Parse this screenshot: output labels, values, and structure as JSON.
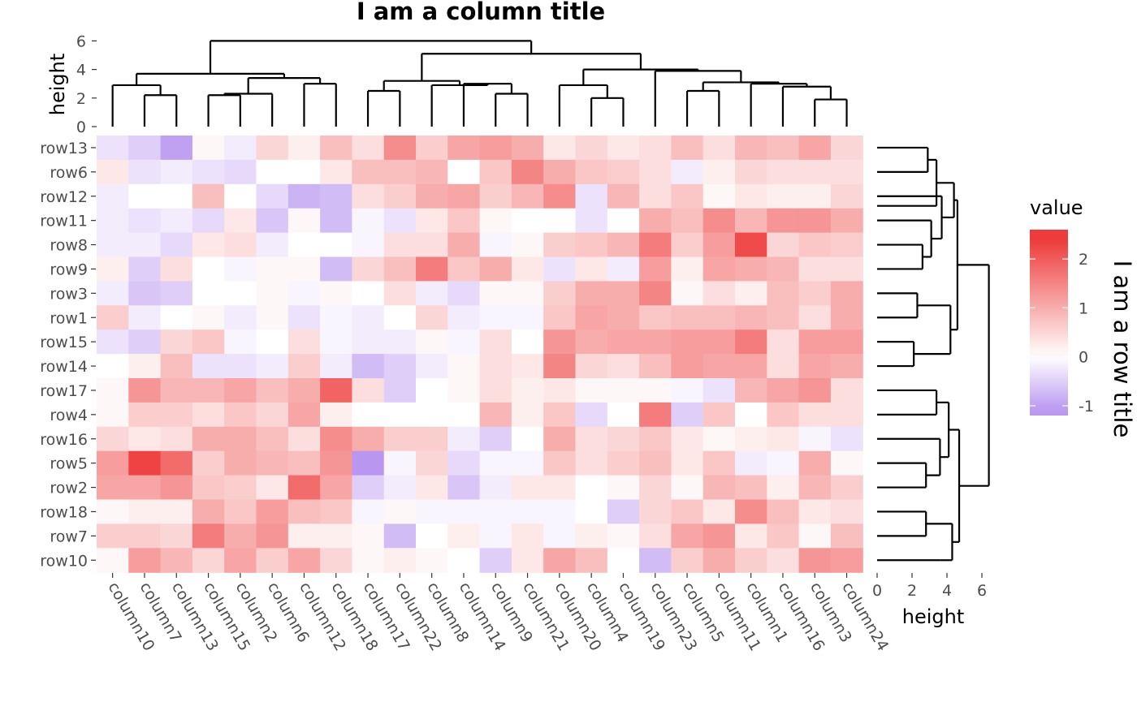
{
  "chart_data": {
    "type": "heatmap",
    "title": "I am a column title",
    "row_title": "I am a row title",
    "columns": [
      "column10",
      "column7",
      "column13",
      "column15",
      "column2",
      "column6",
      "column12",
      "column18",
      "column17",
      "column22",
      "column8",
      "column14",
      "column9",
      "column21",
      "column20",
      "column4",
      "column19",
      "column23",
      "column5",
      "column11",
      "column1",
      "column16",
      "column3",
      "column24"
    ],
    "rows": [
      "row13",
      "row6",
      "row12",
      "row11",
      "row8",
      "row9",
      "row3",
      "row1",
      "row15",
      "row14",
      "row17",
      "row4",
      "row16",
      "row5",
      "row2",
      "row18",
      "row7",
      "row10"
    ],
    "values": [
      [
        -0.3,
        -0.5,
        -1.0,
        0.1,
        -0.2,
        0.5,
        0.2,
        0.8,
        0.4,
        1.4,
        0.6,
        1.1,
        1.2,
        1.0,
        0.3,
        0.5,
        0.3,
        0.4,
        0.8,
        0.4,
        0.9,
        0.8,
        1.1,
        0.5
      ],
      [
        0.3,
        -0.3,
        -0.2,
        -0.3,
        -0.4,
        0.0,
        0.0,
        0.3,
        0.8,
        0.8,
        0.9,
        0.0,
        0.7,
        1.5,
        1.0,
        0.7,
        0.6,
        0.4,
        -0.2,
        0.2,
        0.5,
        0.4,
        0.4,
        0.4
      ],
      [
        -0.2,
        0.0,
        0.0,
        0.8,
        0.0,
        -0.4,
        -0.8,
        -0.7,
        0.4,
        0.6,
        1.0,
        1.1,
        0.6,
        0.9,
        1.4,
        -0.3,
        0.9,
        0.4,
        0.7,
        0.1,
        0.3,
        0.2,
        0.2,
        0.5
      ],
      [
        -0.2,
        -0.3,
        -0.2,
        -0.4,
        0.3,
        -0.6,
        0.1,
        -0.7,
        -0.1,
        -0.3,
        0.3,
        0.7,
        0.1,
        0.0,
        0.0,
        -0.3,
        0.0,
        1.0,
        0.8,
        1.4,
        0.9,
        1.3,
        1.3,
        1.0
      ],
      [
        -0.2,
        -0.2,
        -0.4,
        0.3,
        0.4,
        -0.2,
        0.0,
        0.0,
        -0.1,
        0.4,
        0.4,
        1.0,
        -0.1,
        0.1,
        0.6,
        0.7,
        0.9,
        1.6,
        0.6,
        1.2,
        2.2,
        0.5,
        0.7,
        0.6
      ],
      [
        0.2,
        -0.5,
        0.4,
        0.0,
        -0.1,
        0.1,
        0.1,
        -0.7,
        0.5,
        0.8,
        1.6,
        0.7,
        1.0,
        0.3,
        -0.3,
        0.3,
        -0.2,
        1.2,
        0.2,
        1.1,
        1.0,
        0.9,
        0.4,
        0.4
      ],
      [
        -0.2,
        -0.6,
        -0.5,
        0.0,
        0.0,
        0.1,
        -0.1,
        0.1,
        0.0,
        0.4,
        -0.2,
        -0.4,
        0.1,
        0.1,
        0.6,
        1.0,
        1.0,
        1.5,
        0.1,
        0.4,
        0.2,
        0.8,
        0.6,
        1.0
      ],
      [
        0.6,
        -0.2,
        0.0,
        0.1,
        -0.2,
        0.1,
        -0.3,
        -0.1,
        -0.2,
        0.0,
        0.5,
        -0.2,
        -0.1,
        -0.1,
        0.7,
        1.1,
        1.0,
        0.7,
        0.8,
        0.8,
        0.9,
        0.8,
        0.4,
        1.0
      ],
      [
        -0.3,
        -0.5,
        0.5,
        0.7,
        -0.1,
        0.0,
        0.4,
        -0.1,
        -0.2,
        -0.2,
        0.1,
        -0.1,
        0.4,
        0.0,
        1.3,
        1.0,
        1.1,
        1.1,
        1.2,
        1.2,
        1.6,
        0.4,
        1.2,
        1.2
      ],
      [
        0.0,
        0.2,
        0.8,
        -0.3,
        -0.3,
        -0.2,
        0.6,
        -0.2,
        -0.7,
        -0.5,
        -0.2,
        0.1,
        0.4,
        0.3,
        1.5,
        0.5,
        0.4,
        0.8,
        1.2,
        1.1,
        1.1,
        0.4,
        1.1,
        1.0
      ],
      [
        0.1,
        1.3,
        0.9,
        0.9,
        1.1,
        0.8,
        1.0,
        1.9,
        0.4,
        -0.5,
        0.0,
        0.1,
        0.4,
        0.2,
        0.3,
        0.1,
        0.1,
        0.1,
        -0.1,
        -0.3,
        0.9,
        1.1,
        1.3,
        0.4
      ],
      [
        0.1,
        0.6,
        0.6,
        0.4,
        0.7,
        0.5,
        1.1,
        0.2,
        0.0,
        0.0,
        0.0,
        0.0,
        0.9,
        0.2,
        0.7,
        -0.4,
        0.0,
        1.6,
        -0.5,
        0.7,
        0.0,
        0.7,
        0.4,
        0.4
      ],
      [
        0.5,
        0.3,
        0.4,
        1.0,
        1.0,
        0.8,
        0.4,
        1.4,
        1.0,
        0.6,
        0.6,
        -0.2,
        -0.5,
        0.0,
        1.0,
        0.4,
        0.5,
        0.7,
        0.3,
        0.1,
        0.2,
        0.3,
        -0.1,
        -0.3
      ],
      [
        1.2,
        2.3,
        1.8,
        0.6,
        1.0,
        0.9,
        0.8,
        1.3,
        -1.1,
        -0.1,
        0.5,
        -0.4,
        -0.1,
        -0.1,
        0.7,
        0.4,
        0.6,
        0.8,
        0.3,
        0.7,
        -0.2,
        -0.1,
        1.0,
        0.1
      ],
      [
        1.1,
        1.1,
        1.3,
        0.7,
        0.6,
        0.3,
        1.8,
        1.1,
        -0.5,
        -0.2,
        0.3,
        -0.6,
        -0.2,
        0.3,
        0.3,
        0.0,
        0.1,
        0.5,
        0.1,
        0.9,
        0.8,
        0.2,
        0.9,
        0.6
      ],
      [
        0.1,
        0.2,
        0.2,
        1.0,
        0.7,
        1.2,
        0.8,
        0.7,
        -0.1,
        0.1,
        -0.1,
        -0.1,
        -0.1,
        -0.1,
        -0.1,
        0.0,
        -0.5,
        0.5,
        0.7,
        0.3,
        1.4,
        0.8,
        0.3,
        0.4
      ],
      [
        0.6,
        0.6,
        0.5,
        1.6,
        1.0,
        1.3,
        0.2,
        0.2,
        0.1,
        -0.7,
        0.0,
        0.2,
        -0.1,
        0.3,
        -0.1,
        0.2,
        0.1,
        0.4,
        1.1,
        1.3,
        0.3,
        0.7,
        0.1,
        0.8
      ],
      [
        0.1,
        1.2,
        0.9,
        0.5,
        1.1,
        0.6,
        1.1,
        0.5,
        0.1,
        0.2,
        0.1,
        0.0,
        -0.5,
        0.3,
        1.1,
        0.8,
        0.0,
        -0.7,
        0.6,
        1.0,
        0.6,
        0.4,
        1.3,
        1.2
      ]
    ],
    "col_dendrogram": {
      "ylabel": "height",
      "ylim": [
        0,
        6
      ],
      "yticks": [
        0,
        2,
        4,
        6
      ],
      "leaf_order": [
        "column10",
        "column7",
        "column13",
        "column15",
        "column2",
        "column6",
        "column12",
        "column18",
        "column17",
        "column22",
        "column8",
        "column14",
        "column9",
        "column21",
        "column20",
        "column4",
        "column19",
        "column23",
        "column5",
        "column11",
        "column1",
        "column16",
        "column3",
        "column24"
      ]
    },
    "row_dendrogram": {
      "xlabel": "height",
      "xlim": [
        0,
        6
      ],
      "xticks": [
        0,
        2,
        4,
        6
      ]
    },
    "legend": {
      "title": "value",
      "ticks": [
        2,
        1,
        0,
        -1
      ],
      "range": [
        -1.2,
        2.6
      ],
      "position": "right"
    },
    "colors": {
      "low": "#b996f0",
      "mid": "#ffffff",
      "high": "#ee3b3b"
    }
  }
}
